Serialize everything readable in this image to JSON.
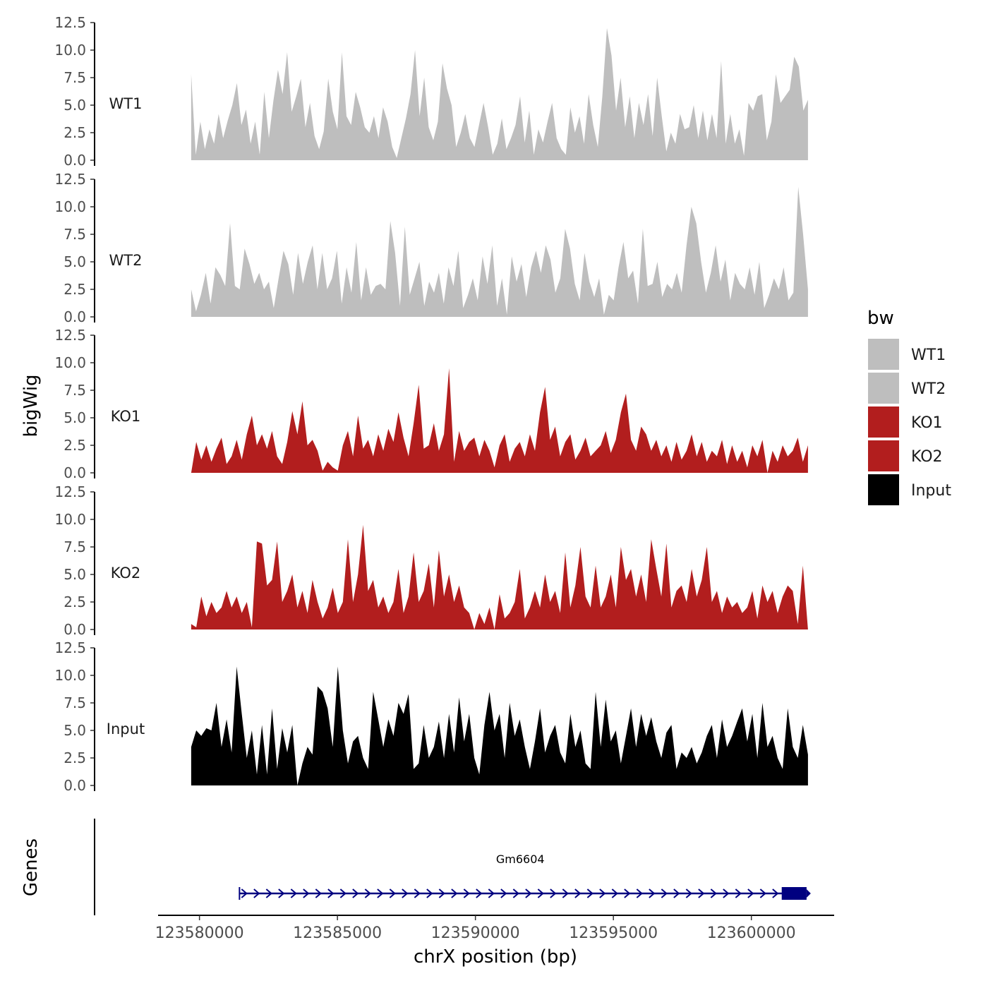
{
  "chart_data": {
    "type": "area",
    "ylabel": "bigWig",
    "xlabel": "chrX position (bp)",
    "genes_label": "Genes",
    "ylim": [
      0,
      12.5
    ],
    "y_ticks": [
      "0.0",
      "2.5",
      "5.0",
      "7.5",
      "10.0",
      "12.5"
    ],
    "x_domain": [
      123578500,
      123603000
    ],
    "x_ticks": [
      {
        "value": 123580000,
        "label": "123580000"
      },
      {
        "value": 123585000,
        "label": "123585000"
      },
      {
        "value": 123590000,
        "label": "123590000"
      },
      {
        "value": 123595000,
        "label": "123595000"
      },
      {
        "value": 123600000,
        "label": "123600000"
      }
    ],
    "x_start": 123579700,
    "x_end": 123602050,
    "legend_title": "bw",
    "colors": {
      "WT1": "#bebebe",
      "WT2": "#bebebe",
      "KO1": "#b21e1e",
      "KO2": "#b21e1e",
      "Input": "#000000"
    },
    "series": [
      {
        "name": "WT1",
        "color": "#bebebe",
        "values": [
          7.8,
          0.5,
          3.5,
          1.0,
          2.8,
          1.5,
          4.2,
          2.0,
          3.6,
          5.0,
          7.0,
          3.2,
          4.6,
          1.5,
          3.5,
          0.5,
          6.2,
          2.0,
          5.4,
          8.2,
          6.0,
          9.8,
          4.4,
          5.8,
          7.4,
          3.0,
          5.2,
          2.2,
          1.0,
          2.6,
          7.4,
          4.4,
          2.8,
          9.8,
          4.0,
          3.2,
          6.2,
          4.8,
          3.0,
          2.5,
          4.0,
          2.0,
          4.8,
          3.5,
          1.2,
          0.2,
          2.0,
          3.8,
          6.0,
          10.0,
          4.0,
          7.5,
          3.0,
          1.8,
          3.5,
          8.8,
          6.5,
          5.0,
          1.2,
          2.5,
          4.2,
          2.0,
          1.2,
          3.2,
          5.2,
          3.0,
          0.5,
          1.5,
          3.8,
          1.0,
          2.0,
          3.2,
          5.8,
          1.6,
          4.5,
          0.5,
          2.8,
          1.6,
          3.5,
          5.2,
          2.0,
          1.0,
          0.5,
          4.8,
          2.5,
          4.0,
          1.5,
          6.0,
          3.2,
          1.2,
          5.8,
          12.0,
          9.5,
          4.5,
          7.5,
          3.0,
          5.8,
          2.0,
          5.2,
          3.2,
          6.0,
          2.2,
          7.5,
          4.0,
          0.8,
          2.5,
          1.5,
          4.2,
          2.8,
          3.0,
          5.0,
          2.0,
          4.5,
          1.8,
          4.2,
          2.0,
          9.0,
          1.5,
          4.2,
          1.5,
          2.8,
          0.4,
          5.2,
          4.5,
          5.8,
          6.0,
          1.8,
          3.5,
          7.8,
          5.2,
          5.8,
          6.4,
          9.4,
          8.5,
          4.5,
          5.5
        ]
      },
      {
        "name": "WT2",
        "color": "#bebebe",
        "values": [
          2.5,
          0.5,
          2.0,
          4.0,
          1.2,
          4.5,
          3.8,
          2.8,
          8.5,
          2.8,
          2.5,
          6.2,
          4.8,
          3.0,
          4.0,
          2.5,
          3.2,
          0.8,
          3.5,
          6.0,
          4.8,
          2.0,
          5.8,
          3.0,
          5.0,
          6.5,
          2.5,
          5.8,
          2.5,
          3.5,
          6.0,
          1.2,
          4.5,
          2.2,
          6.8,
          1.5,
          4.5,
          2.0,
          2.8,
          3.0,
          2.5,
          8.7,
          5.8,
          1.0,
          8.2,
          2.0,
          3.5,
          5.0,
          1.0,
          3.2,
          2.2,
          4.0,
          1.2,
          4.5,
          2.8,
          6.0,
          0.8,
          2.0,
          3.5,
          1.5,
          5.5,
          3.0,
          6.5,
          1.0,
          3.5,
          0.2,
          5.5,
          3.2,
          4.8,
          1.8,
          4.5,
          6.0,
          4.0,
          6.5,
          5.2,
          2.2,
          3.5,
          8.0,
          6.2,
          3.0,
          1.5,
          5.8,
          3.2,
          1.8,
          3.5,
          0.2,
          2.0,
          1.5,
          4.5,
          6.8,
          3.5,
          4.2,
          1.2,
          8.0,
          2.8,
          3.0,
          5.0,
          1.8,
          3.0,
          2.5,
          4.0,
          2.2,
          6.5,
          10.0,
          8.5,
          5.0,
          2.2,
          4.0,
          6.5,
          3.2,
          5.2,
          1.5,
          4.0,
          3.0,
          2.5,
          4.5,
          2.0,
          5.0,
          0.8,
          2.0,
          3.5,
          2.5,
          4.5,
          1.5,
          2.2,
          11.8,
          7.5,
          2.5
        ]
      },
      {
        "name": "KO1",
        "color": "#b21e1e",
        "values": [
          0.0,
          2.8,
          1.2,
          2.5,
          1.0,
          2.2,
          3.2,
          0.8,
          1.5,
          3.0,
          1.2,
          3.5,
          5.2,
          2.5,
          3.5,
          2.2,
          3.8,
          1.5,
          0.8,
          2.8,
          5.6,
          3.5,
          6.5,
          2.5,
          3.0,
          2.0,
          0.2,
          1.0,
          0.5,
          0.2,
          2.5,
          3.8,
          1.5,
          5.2,
          2.2,
          3.0,
          1.5,
          3.5,
          2.0,
          4.0,
          2.8,
          5.5,
          3.2,
          1.5,
          4.5,
          8.0,
          2.2,
          2.5,
          4.5,
          2.0,
          3.5,
          9.5,
          1.0,
          3.8,
          2.0,
          2.8,
          3.2,
          1.5,
          3.0,
          2.0,
          0.5,
          2.5,
          3.5,
          1.0,
          2.2,
          2.8,
          1.5,
          3.5,
          2.0,
          5.5,
          7.8,
          3.0,
          4.2,
          1.5,
          2.8,
          3.5,
          1.2,
          2.0,
          3.2,
          1.5,
          2.0,
          2.5,
          3.8,
          1.8,
          3.0,
          5.5,
          7.2,
          3.0,
          2.0,
          4.2,
          3.5,
          2.0,
          3.0,
          1.5,
          2.5,
          1.0,
          2.8,
          1.2,
          2.0,
          3.5,
          1.5,
          2.8,
          1.0,
          2.0,
          1.5,
          3.0,
          0.8,
          2.5,
          1.0,
          2.0,
          0.5,
          2.5,
          1.5,
          3.0,
          0.0,
          2.0,
          1.0,
          2.5,
          1.5,
          2.0,
          3.2,
          1.0,
          2.5
        ]
      },
      {
        "name": "KO2",
        "color": "#b21e1e",
        "values": [
          0.5,
          0.2,
          3.0,
          1.2,
          2.5,
          1.5,
          2.0,
          3.5,
          2.0,
          3.0,
          1.5,
          2.5,
          0.2,
          8.0,
          7.8,
          4.0,
          4.5,
          8.0,
          2.5,
          3.5,
          5.0,
          2.0,
          3.5,
          1.5,
          4.5,
          2.5,
          1.0,
          2.0,
          3.8,
          1.5,
          2.5,
          8.2,
          2.5,
          5.0,
          9.5,
          3.5,
          4.5,
          2.0,
          3.0,
          1.5,
          2.5,
          5.5,
          1.5,
          3.0,
          7.0,
          2.5,
          3.5,
          6.0,
          2.0,
          7.2,
          3.0,
          5.0,
          2.5,
          4.0,
          2.0,
          1.5,
          0.0,
          1.5,
          0.5,
          2.0,
          0.0,
          3.2,
          1.0,
          1.5,
          2.5,
          5.5,
          1.0,
          2.0,
          3.5,
          2.0,
          5.0,
          2.5,
          3.5,
          1.5,
          7.0,
          2.0,
          4.0,
          7.5,
          3.0,
          2.0,
          5.8,
          2.0,
          3.0,
          5.0,
          2.0,
          7.5,
          4.5,
          5.5,
          3.0,
          5.0,
          2.5,
          8.2,
          5.5,
          3.0,
          7.8,
          2.0,
          3.5,
          4.0,
          2.5,
          5.5,
          3.0,
          4.5,
          7.5,
          2.5,
          3.5,
          1.5,
          3.0,
          2.0,
          2.5,
          1.5,
          2.0,
          3.5,
          1.0,
          4.0,
          2.5,
          3.5,
          1.5,
          3.0,
          4.0,
          3.5,
          0.5,
          5.8,
          0.0
        ]
      },
      {
        "name": "Input",
        "color": "#000000",
        "values": [
          3.5,
          5.0,
          4.5,
          5.2,
          5.0,
          7.5,
          3.5,
          6.0,
          3.0,
          10.8,
          6.5,
          2.5,
          5.0,
          1.0,
          5.5,
          1.0,
          7.0,
          1.5,
          5.2,
          3.0,
          5.5,
          0.0,
          2.0,
          3.5,
          2.8,
          9.0,
          8.5,
          7.0,
          3.5,
          10.8,
          5.0,
          2.0,
          4.0,
          4.5,
          2.5,
          1.5,
          8.5,
          6.0,
          3.5,
          6.0,
          4.5,
          7.5,
          6.5,
          8.3,
          1.5,
          2.0,
          5.5,
          2.5,
          3.5,
          5.8,
          2.5,
          6.5,
          3.0,
          8.0,
          4.0,
          6.5,
          2.5,
          1.0,
          5.5,
          8.5,
          5.0,
          6.5,
          2.5,
          7.5,
          4.5,
          6.0,
          3.5,
          1.5,
          4.0,
          7.0,
          3.0,
          4.5,
          5.5,
          3.0,
          2.0,
          6.5,
          3.5,
          5.0,
          2.0,
          1.5,
          8.5,
          3.5,
          7.8,
          4.0,
          5.0,
          2.0,
          4.5,
          7.0,
          3.5,
          6.5,
          4.5,
          6.2,
          4.0,
          2.5,
          4.8,
          5.5,
          1.5,
          3.0,
          2.5,
          3.5,
          2.0,
          3.0,
          4.5,
          5.5,
          2.5,
          6.0,
          3.5,
          4.5,
          5.8,
          7.0,
          4.0,
          6.5,
          2.5,
          7.5,
          3.5,
          4.5,
          2.5,
          1.5,
          7.0,
          3.5,
          2.5,
          5.5,
          2.8
        ]
      }
    ],
    "gene": {
      "name": "Gm6604",
      "start": 123581450,
      "end": 123601800,
      "exon_start": 123601100,
      "exon_end": 123602000,
      "color": "#000080"
    }
  }
}
